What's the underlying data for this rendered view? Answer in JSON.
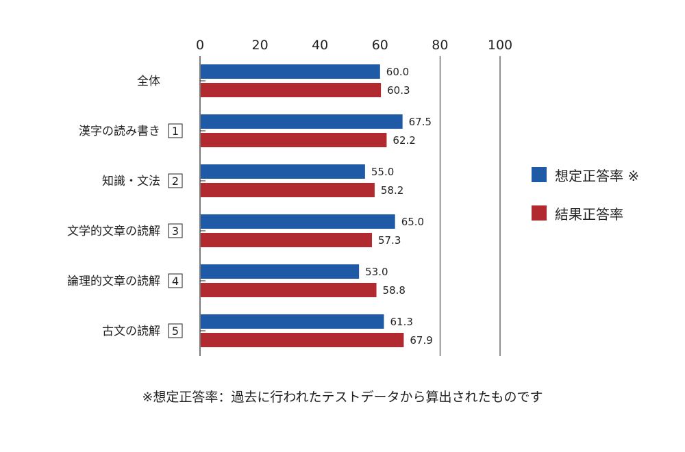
{
  "chart_data": {
    "type": "bar",
    "orientation": "horizontal",
    "xlim": [
      0,
      100
    ],
    "x_ticks": [
      0,
      20,
      40,
      60,
      80,
      100
    ],
    "grid": "vertical lines at 80 and 100",
    "categories": [
      {
        "label": "全体",
        "num": ""
      },
      {
        "label": "漢字の読み書き",
        "num": "1"
      },
      {
        "label": "知識・文法",
        "num": "2"
      },
      {
        "label": "文学的文章の読解",
        "num": "3"
      },
      {
        "label": "論理的文章の読解",
        "num": "4"
      },
      {
        "label": "古文の読解",
        "num": "5"
      }
    ],
    "series": [
      {
        "name": "想定正答率 ※",
        "color": "#1f5aa6",
        "values": [
          60.0,
          67.5,
          55.0,
          65.0,
          53.0,
          61.3
        ],
        "labels": [
          "60.0",
          "67.5",
          "55.0",
          "65.0",
          "53.0",
          "61.3"
        ]
      },
      {
        "name": "結果正答率",
        "color": "#b02a30",
        "values": [
          60.3,
          62.2,
          58.2,
          57.3,
          58.8,
          67.9
        ],
        "labels": [
          "60.3",
          "62.2",
          "58.2",
          "57.3",
          "58.8",
          "67.9"
        ]
      }
    ],
    "legend_position": "right",
    "footnote": "※想定正答率：過去に行われたテストデータから算出されたものです"
  }
}
